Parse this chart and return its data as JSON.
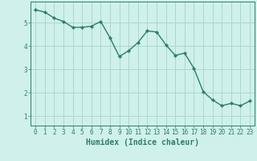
{
  "x": [
    0,
    1,
    2,
    3,
    4,
    5,
    6,
    7,
    8,
    9,
    10,
    11,
    12,
    13,
    14,
    15,
    16,
    17,
    18,
    19,
    20,
    21,
    22,
    23
  ],
  "y": [
    5.55,
    5.45,
    5.2,
    5.05,
    4.8,
    4.8,
    4.85,
    5.05,
    4.35,
    3.55,
    3.8,
    4.15,
    4.65,
    4.6,
    4.05,
    3.6,
    3.7,
    3.05,
    2.05,
    1.7,
    1.45,
    1.55,
    1.45,
    1.65
  ],
  "line_color": "#2e7d6e",
  "marker_color": "#2e7d6e",
  "bg_color": "#cff0eb",
  "grid_color": "#aad8d2",
  "xlabel": "Humidex (Indice chaleur)",
  "xlim": [
    -0.5,
    23.5
  ],
  "ylim": [
    0.6,
    5.9
  ],
  "yticks": [
    1,
    2,
    3,
    4,
    5
  ],
  "xticks": [
    0,
    1,
    2,
    3,
    4,
    5,
    6,
    7,
    8,
    9,
    10,
    11,
    12,
    13,
    14,
    15,
    16,
    17,
    18,
    19,
    20,
    21,
    22,
    23
  ],
  "tick_label_fontsize": 5.5,
  "xlabel_fontsize": 7.0,
  "linewidth": 1.0,
  "markersize": 2.2
}
